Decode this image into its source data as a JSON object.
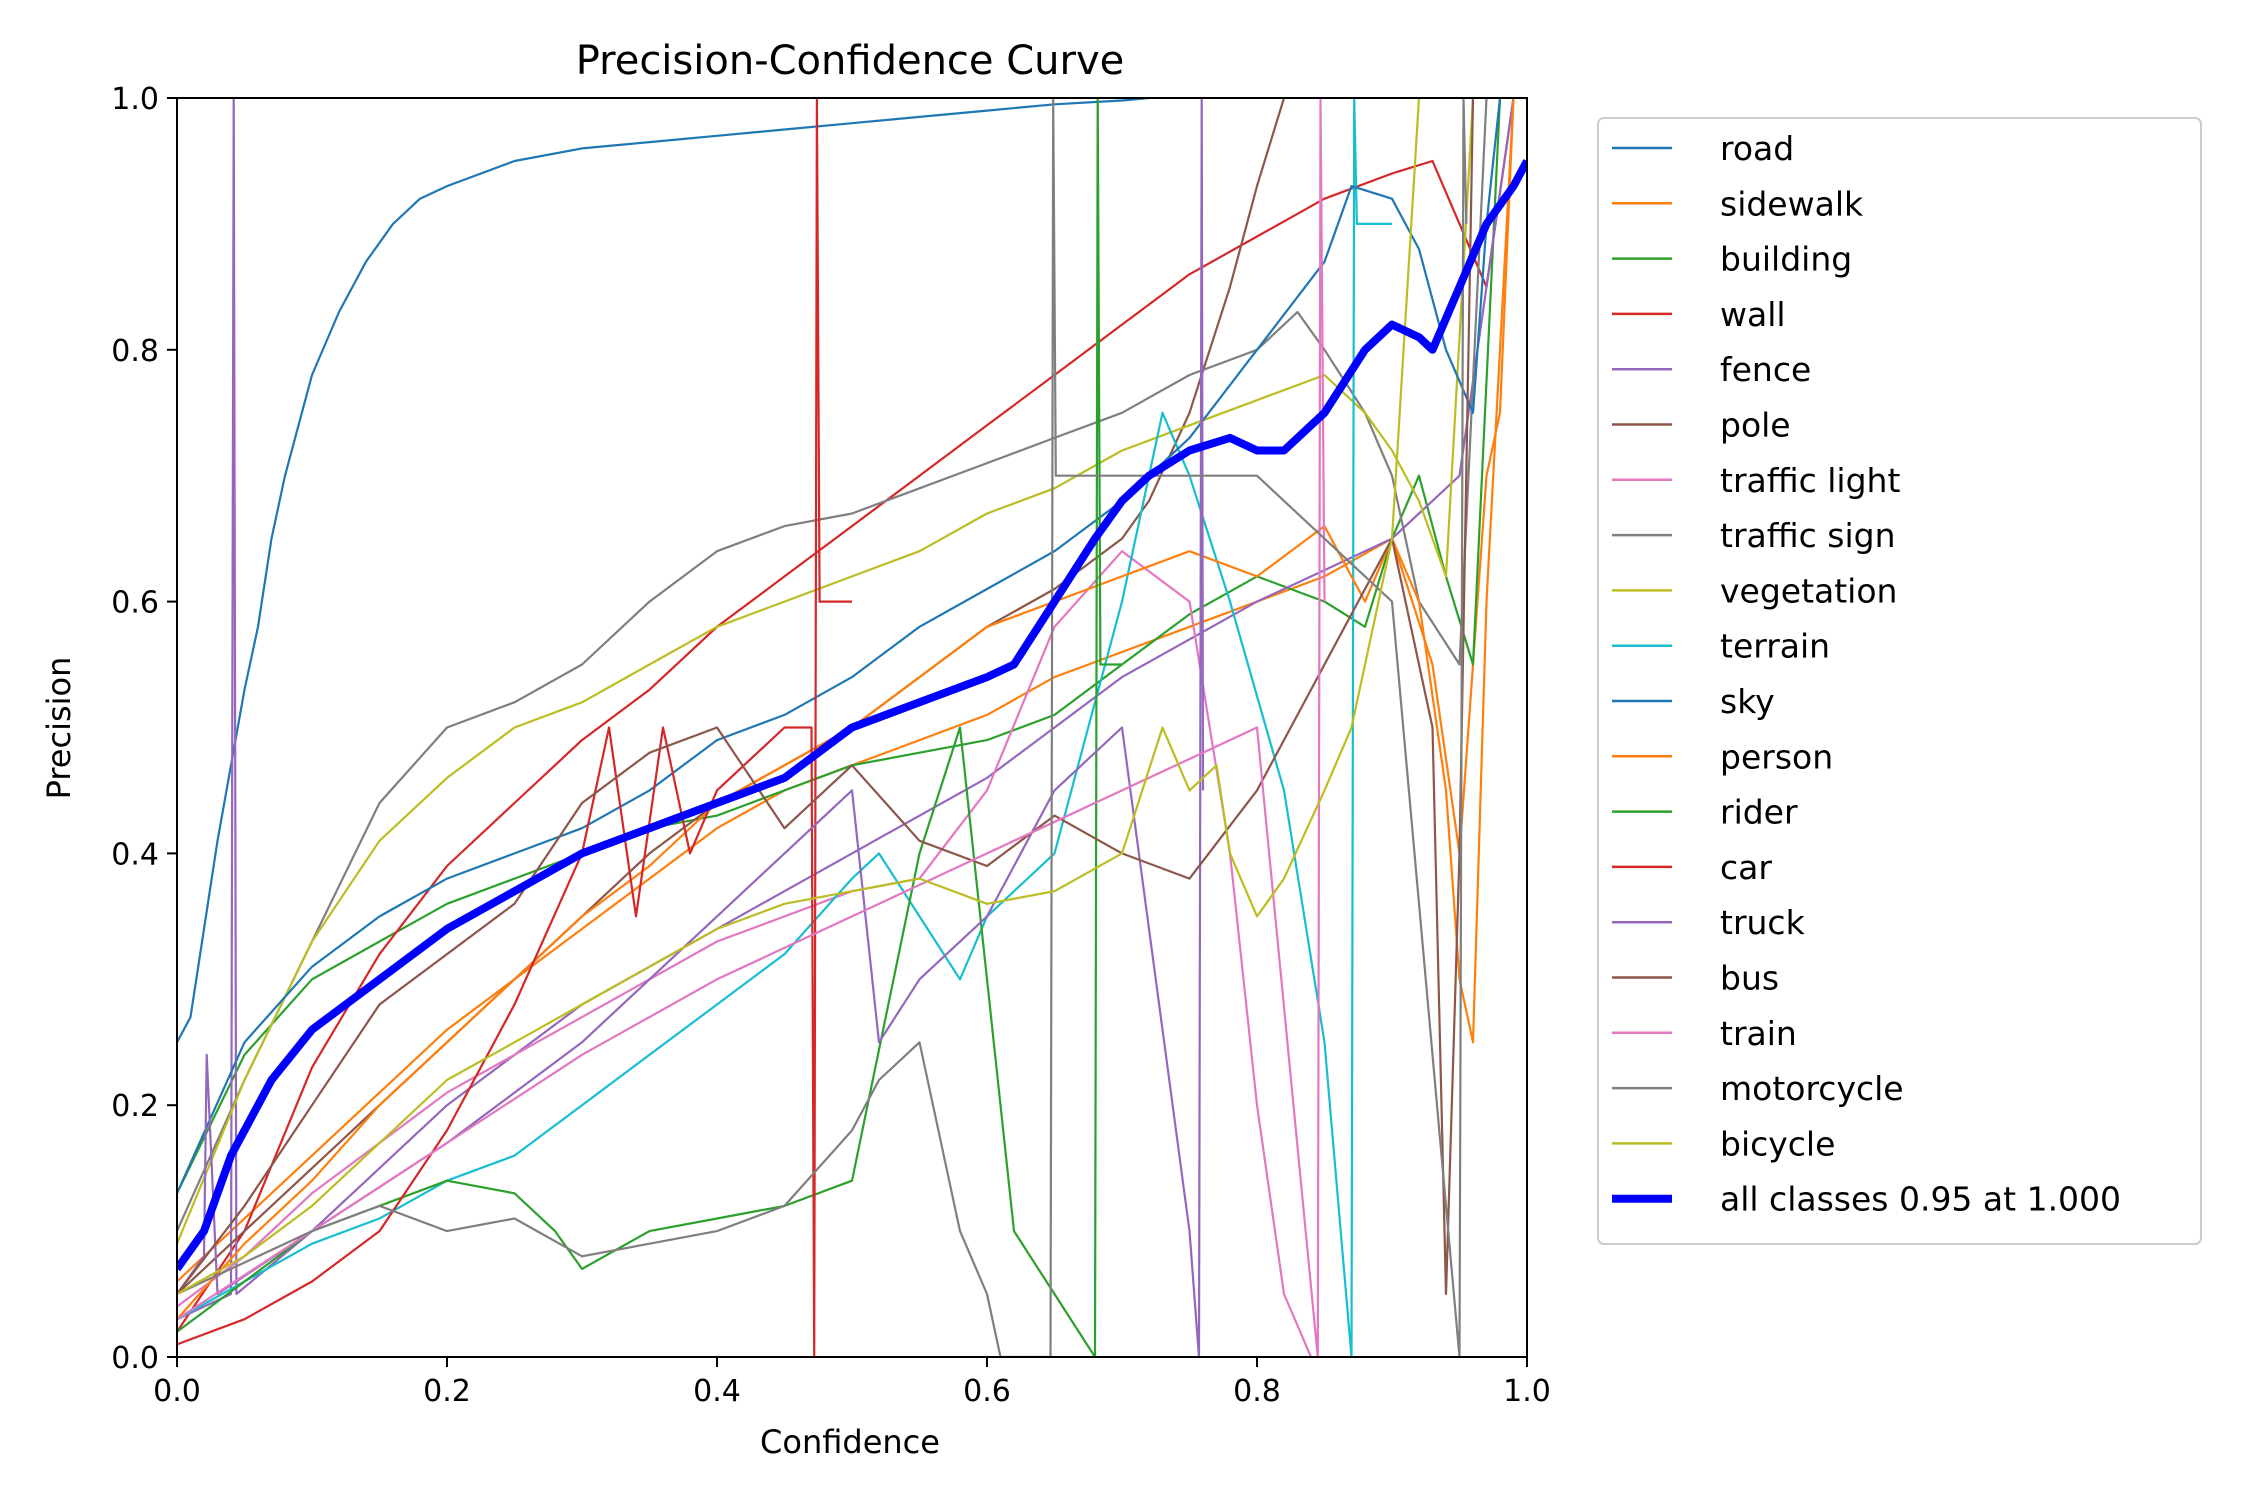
{
  "chart_data": {
    "type": "line",
    "title": "Precision-Confidence Curve",
    "xlabel": "Confidence",
    "ylabel": "Precision",
    "xlim": [
      0,
      1
    ],
    "ylim": [
      0,
      1
    ],
    "xticks": [
      "0.0",
      "0.2",
      "0.4",
      "0.6",
      "0.8",
      "1.0"
    ],
    "yticks": [
      "0.0",
      "0.2",
      "0.4",
      "0.6",
      "0.8",
      "1.0"
    ],
    "grid": false,
    "legend_position": "outside-right",
    "series": [
      {
        "name": "road",
        "color": "#1f77b4",
        "x": [
          0,
          0.01,
          0.02,
          0.03,
          0.04,
          0.05,
          0.06,
          0.07,
          0.08,
          0.09,
          0.1,
          0.12,
          0.14,
          0.16,
          0.18,
          0.2,
          0.25,
          0.3,
          0.35,
          0.4,
          0.45,
          0.5,
          0.55,
          0.6,
          0.65,
          0.7,
          0.72
        ],
        "y": [
          0.25,
          0.27,
          0.34,
          0.41,
          0.47,
          0.53,
          0.58,
          0.65,
          0.7,
          0.74,
          0.78,
          0.83,
          0.87,
          0.9,
          0.92,
          0.93,
          0.95,
          0.96,
          0.965,
          0.97,
          0.975,
          0.98,
          0.985,
          0.99,
          0.995,
          0.998,
          1.0
        ]
      },
      {
        "name": "sidewalk",
        "color": "#ff7f0e",
        "x": [
          0,
          0.05,
          0.1,
          0.15,
          0.2,
          0.25,
          0.3,
          0.35,
          0.4,
          0.45,
          0.5,
          0.55,
          0.6,
          0.65,
          0.7,
          0.75,
          0.8,
          0.85,
          0.9,
          0.93,
          0.95,
          0.97,
          0.98,
          0.99
        ],
        "y": [
          0.06,
          0.11,
          0.16,
          0.21,
          0.26,
          0.3,
          0.34,
          0.38,
          0.42,
          0.45,
          0.47,
          0.49,
          0.51,
          0.54,
          0.56,
          0.58,
          0.6,
          0.62,
          0.65,
          0.55,
          0.4,
          0.7,
          0.75,
          1.0
        ]
      },
      {
        "name": "building",
        "color": "#2ca02c",
        "x": [
          0,
          0.05,
          0.1,
          0.15,
          0.2,
          0.25,
          0.3,
          0.35,
          0.4,
          0.45,
          0.5,
          0.55,
          0.6,
          0.65,
          0.7,
          0.75,
          0.8,
          0.85,
          0.88,
          0.9,
          0.92,
          0.94,
          0.96,
          0.98
        ],
        "y": [
          0.13,
          0.24,
          0.3,
          0.33,
          0.36,
          0.38,
          0.4,
          0.42,
          0.43,
          0.45,
          0.47,
          0.48,
          0.49,
          0.51,
          0.55,
          0.59,
          0.62,
          0.6,
          0.58,
          0.65,
          0.7,
          0.62,
          0.55,
          1.0
        ]
      },
      {
        "name": "wall",
        "color": "#d62728",
        "x": [
          0,
          0.05,
          0.1,
          0.15,
          0.2,
          0.25,
          0.3,
          0.35,
          0.4,
          0.45,
          0.5,
          0.55,
          0.6,
          0.65,
          0.7,
          0.75,
          0.8,
          0.85,
          0.9,
          0.93,
          0.95,
          0.97,
          0.99
        ],
        "y": [
          0.02,
          0.1,
          0.23,
          0.32,
          0.39,
          0.44,
          0.49,
          0.53,
          0.58,
          0.62,
          0.66,
          0.7,
          0.74,
          0.78,
          0.82,
          0.86,
          0.89,
          0.92,
          0.94,
          0.95,
          0.9,
          0.85,
          1.0
        ]
      },
      {
        "name": "fence",
        "color": "#9467bd",
        "x": [
          0,
          0.04,
          0.042,
          0.044,
          0.1,
          0.2,
          0.3,
          0.4,
          0.5,
          0.6,
          0.7,
          0.8,
          0.9,
          0.95,
          0.99
        ],
        "y": [
          0.03,
          0.05,
          1.0,
          0.05,
          0.1,
          0.2,
          0.28,
          0.34,
          0.4,
          0.46,
          0.54,
          0.6,
          0.65,
          0.7,
          1.0
        ]
      },
      {
        "name": "pole",
        "color": "#8c564b",
        "x": [
          0,
          0.05,
          0.1,
          0.15,
          0.2,
          0.25,
          0.3,
          0.35,
          0.4,
          0.45,
          0.5,
          0.55,
          0.6,
          0.65,
          0.7,
          0.72,
          0.75,
          0.78,
          0.8,
          0.82
        ],
        "y": [
          0.05,
          0.1,
          0.15,
          0.2,
          0.25,
          0.3,
          0.35,
          0.4,
          0.44,
          0.47,
          0.5,
          0.54,
          0.58,
          0.61,
          0.65,
          0.68,
          0.75,
          0.85,
          0.93,
          1.0
        ]
      },
      {
        "name": "traffic light",
        "color": "#e377c2",
        "x": [
          0,
          0.05,
          0.1,
          0.15,
          0.2,
          0.25,
          0.3,
          0.35,
          0.4,
          0.45,
          0.5,
          0.55,
          0.6,
          0.65,
          0.7,
          0.75,
          0.78,
          0.8,
          0.82,
          0.84
        ],
        "y": [
          0.04,
          0.08,
          0.13,
          0.17,
          0.21,
          0.24,
          0.27,
          0.3,
          0.33,
          0.35,
          0.37,
          0.38,
          0.45,
          0.58,
          0.64,
          0.6,
          0.4,
          0.2,
          0.05,
          0.0
        ]
      },
      {
        "name": "traffic sign",
        "color": "#7f7f7f",
        "x": [
          0,
          0.05,
          0.1,
          0.15,
          0.2,
          0.25,
          0.3,
          0.35,
          0.4,
          0.45,
          0.5,
          0.55,
          0.6,
          0.65,
          0.7,
          0.75,
          0.8,
          0.83,
          0.85,
          0.88,
          0.9,
          0.92,
          0.95,
          0.97
        ],
        "y": [
          0.1,
          0.22,
          0.33,
          0.44,
          0.5,
          0.52,
          0.55,
          0.6,
          0.64,
          0.66,
          0.67,
          0.69,
          0.71,
          0.73,
          0.75,
          0.78,
          0.8,
          0.83,
          0.8,
          0.75,
          0.7,
          0.6,
          0.55,
          1.0
        ]
      },
      {
        "name": "vegetation",
        "color": "#bcbd22",
        "x": [
          0,
          0.05,
          0.1,
          0.15,
          0.2,
          0.25,
          0.3,
          0.35,
          0.4,
          0.45,
          0.5,
          0.55,
          0.6,
          0.65,
          0.7,
          0.75,
          0.8,
          0.85,
          0.88,
          0.9,
          0.92,
          0.94,
          0.96
        ],
        "y": [
          0.09,
          0.22,
          0.33,
          0.41,
          0.46,
          0.5,
          0.52,
          0.55,
          0.58,
          0.6,
          0.62,
          0.64,
          0.67,
          0.69,
          0.72,
          0.74,
          0.76,
          0.78,
          0.75,
          0.72,
          0.68,
          0.62,
          1.0
        ]
      },
      {
        "name": "terrain",
        "color": "#17becf",
        "x": [
          0,
          0.05,
          0.1,
          0.15,
          0.2,
          0.25,
          0.3,
          0.35,
          0.4,
          0.45,
          0.5,
          0.52,
          0.55,
          0.58,
          0.6,
          0.65,
          0.7,
          0.73,
          0.75,
          0.78,
          0.82,
          0.85,
          0.87,
          0.872,
          0.874,
          0.9
        ],
        "y": [
          0.03,
          0.06,
          0.09,
          0.11,
          0.14,
          0.16,
          0.2,
          0.24,
          0.28,
          0.32,
          0.38,
          0.4,
          0.35,
          0.3,
          0.35,
          0.4,
          0.6,
          0.75,
          0.7,
          0.6,
          0.45,
          0.25,
          0.0,
          1.0,
          0.9,
          0.9
        ]
      },
      {
        "name": "sky",
        "color": "#1f77b4",
        "x": [
          0,
          0.05,
          0.1,
          0.15,
          0.2,
          0.25,
          0.3,
          0.35,
          0.4,
          0.45,
          0.5,
          0.55,
          0.6,
          0.65,
          0.7,
          0.75,
          0.8,
          0.85,
          0.87,
          0.9,
          0.92,
          0.94,
          0.96,
          0.97,
          0.98
        ],
        "y": [
          0.13,
          0.25,
          0.31,
          0.35,
          0.38,
          0.4,
          0.42,
          0.45,
          0.49,
          0.51,
          0.54,
          0.58,
          0.61,
          0.64,
          0.68,
          0.73,
          0.8,
          0.87,
          0.93,
          0.92,
          0.88,
          0.8,
          0.75,
          0.9,
          1.0
        ]
      },
      {
        "name": "person",
        "color": "#ff7f0e",
        "x": [
          0,
          0.05,
          0.1,
          0.15,
          0.2,
          0.25,
          0.3,
          0.35,
          0.4,
          0.45,
          0.5,
          0.55,
          0.6,
          0.65,
          0.7,
          0.75,
          0.8,
          0.85,
          0.88,
          0.9,
          0.92,
          0.94,
          0.95,
          0.96,
          0.97,
          0.98,
          0.99
        ],
        "y": [
          0.03,
          0.09,
          0.14,
          0.2,
          0.25,
          0.3,
          0.35,
          0.39,
          0.44,
          0.47,
          0.5,
          0.54,
          0.58,
          0.6,
          0.62,
          0.64,
          0.62,
          0.66,
          0.6,
          0.65,
          0.6,
          0.45,
          0.3,
          0.25,
          0.6,
          0.8,
          1.0
        ]
      },
      {
        "name": "rider",
        "color": "#2ca02c",
        "x": [
          0,
          0.05,
          0.1,
          0.15,
          0.2,
          0.25,
          0.28,
          0.3,
          0.35,
          0.4,
          0.45,
          0.5,
          0.55,
          0.58,
          0.6,
          0.62,
          0.65,
          0.68,
          0.682,
          0.684,
          0.7
        ],
        "y": [
          0.02,
          0.06,
          0.1,
          0.12,
          0.14,
          0.13,
          0.1,
          0.07,
          0.1,
          0.11,
          0.12,
          0.14,
          0.4,
          0.5,
          0.3,
          0.1,
          0.05,
          0.0,
          1.0,
          0.55,
          0.55
        ]
      },
      {
        "name": "car",
        "color": "#d62728",
        "x": [
          0,
          0.05,
          0.1,
          0.15,
          0.2,
          0.25,
          0.3,
          0.32,
          0.34,
          0.36,
          0.38,
          0.4,
          0.45,
          0.47,
          0.472,
          0.474,
          0.476,
          0.5
        ],
        "y": [
          0.01,
          0.03,
          0.06,
          0.1,
          0.18,
          0.28,
          0.4,
          0.5,
          0.35,
          0.5,
          0.4,
          0.45,
          0.5,
          0.5,
          0.0,
          1.0,
          0.6,
          0.6
        ]
      },
      {
        "name": "truck",
        "color": "#9467bd",
        "x": [
          0,
          0.02,
          0.022,
          0.03,
          0.1,
          0.2,
          0.3,
          0.35,
          0.4,
          0.45,
          0.5,
          0.52,
          0.55,
          0.6,
          0.65,
          0.7,
          0.75,
          0.757,
          0.759,
          0.76
        ],
        "y": [
          0.05,
          0.08,
          0.24,
          0.05,
          0.1,
          0.17,
          0.25,
          0.3,
          0.35,
          0.4,
          0.45,
          0.25,
          0.3,
          0.35,
          0.45,
          0.5,
          0.1,
          0.0,
          1.0,
          0.45
        ]
      },
      {
        "name": "bus",
        "color": "#8c564b",
        "x": [
          0,
          0.05,
          0.1,
          0.15,
          0.2,
          0.25,
          0.3,
          0.35,
          0.4,
          0.45,
          0.5,
          0.55,
          0.6,
          0.65,
          0.7,
          0.75,
          0.8,
          0.85,
          0.9,
          0.93,
          0.94,
          0.95,
          0.96
        ],
        "y": [
          0.05,
          0.12,
          0.2,
          0.28,
          0.32,
          0.36,
          0.44,
          0.48,
          0.5,
          0.42,
          0.47,
          0.41,
          0.39,
          0.43,
          0.4,
          0.38,
          0.45,
          0.55,
          0.65,
          0.5,
          0.05,
          0.4,
          1.0
        ]
      },
      {
        "name": "train",
        "color": "#e377c2",
        "x": [
          0,
          0.1,
          0.2,
          0.3,
          0.4,
          0.5,
          0.6,
          0.7,
          0.8,
          0.845,
          0.847,
          0.85
        ],
        "y": [
          0.03,
          0.1,
          0.17,
          0.24,
          0.3,
          0.35,
          0.4,
          0.45,
          0.5,
          0.0,
          1.0,
          0.6
        ]
      },
      {
        "name": "motorcycle",
        "color": "#7f7f7f",
        "x": [
          0,
          0.1,
          0.15,
          0.2,
          0.25,
          0.3,
          0.35,
          0.4,
          0.45,
          0.5,
          0.52,
          0.55,
          0.58,
          0.6,
          0.61,
          0.647,
          0.649,
          0.651,
          0.7,
          0.8,
          0.9,
          0.95,
          0.953,
          0.955
        ],
        "y": [
          0.05,
          0.1,
          0.12,
          0.1,
          0.11,
          0.08,
          0.09,
          0.1,
          0.12,
          0.18,
          0.22,
          0.25,
          0.1,
          0.05,
          0.0,
          0.0,
          1.0,
          0.7,
          0.7,
          0.7,
          0.6,
          0.0,
          1.0,
          0.9
        ]
      },
      {
        "name": "bicycle",
        "color": "#bcbd22",
        "x": [
          0,
          0.05,
          0.1,
          0.15,
          0.2,
          0.25,
          0.3,
          0.35,
          0.4,
          0.45,
          0.5,
          0.55,
          0.6,
          0.65,
          0.7,
          0.73,
          0.75,
          0.77,
          0.78,
          0.8,
          0.82,
          0.85,
          0.87,
          0.9,
          0.92
        ],
        "y": [
          0.05,
          0.08,
          0.12,
          0.17,
          0.22,
          0.25,
          0.28,
          0.31,
          0.34,
          0.36,
          0.37,
          0.38,
          0.36,
          0.37,
          0.4,
          0.5,
          0.45,
          0.47,
          0.4,
          0.35,
          0.38,
          0.45,
          0.5,
          0.65,
          1.0
        ]
      },
      {
        "name": "all classes 0.95 at 1.000",
        "color": "#0000ff",
        "bold": true,
        "x": [
          0,
          0.02,
          0.04,
          0.07,
          0.1,
          0.15,
          0.2,
          0.25,
          0.3,
          0.35,
          0.4,
          0.45,
          0.5,
          0.55,
          0.6,
          0.62,
          0.65,
          0.68,
          0.7,
          0.72,
          0.75,
          0.78,
          0.8,
          0.82,
          0.85,
          0.88,
          0.9,
          0.92,
          0.93,
          0.95,
          0.97,
          0.99,
          1.0
        ],
        "y": [
          0.07,
          0.1,
          0.16,
          0.22,
          0.26,
          0.3,
          0.34,
          0.37,
          0.4,
          0.42,
          0.44,
          0.46,
          0.5,
          0.52,
          0.54,
          0.55,
          0.6,
          0.65,
          0.68,
          0.7,
          0.72,
          0.73,
          0.72,
          0.72,
          0.75,
          0.8,
          0.82,
          0.81,
          0.8,
          0.85,
          0.9,
          0.93,
          0.95
        ]
      }
    ]
  }
}
